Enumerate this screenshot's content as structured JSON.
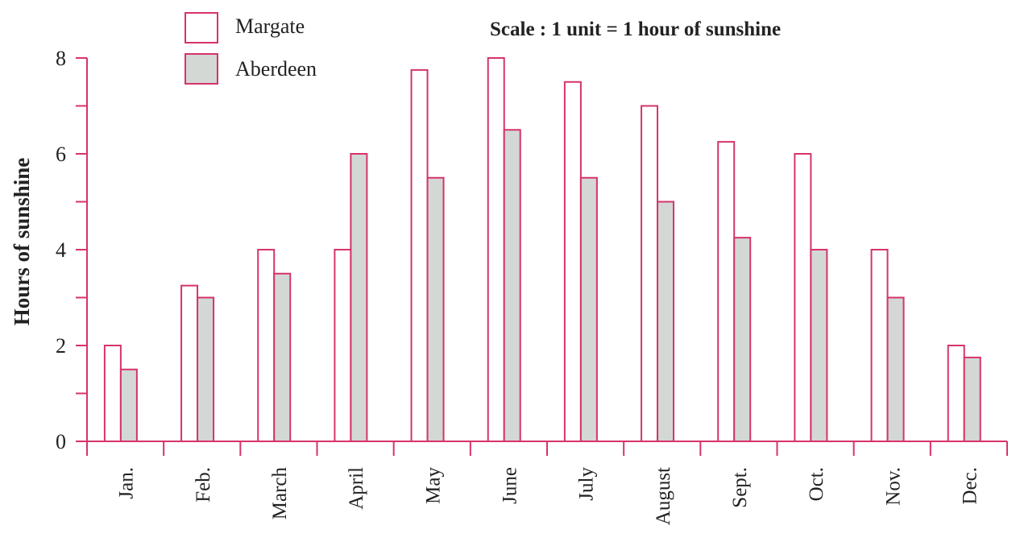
{
  "chart_data": {
    "type": "bar",
    "title": "",
    "annotation": "Scale : 1 unit = 1 hour of sunshine",
    "xlabel": "",
    "ylabel": "Hours of sunshine",
    "ylim": [
      0,
      8
    ],
    "yticks": [
      "0",
      "2",
      "4",
      "6",
      "8"
    ],
    "grid": false,
    "legend_position": "top-left",
    "categories": [
      "Jan.",
      "Feb.",
      "March",
      "April",
      "May",
      "June",
      "July",
      "August",
      "Sept.",
      "Oct.",
      "Nov.",
      "Dec."
    ],
    "series": [
      {
        "name": "Margate",
        "values": [
          2,
          3.25,
          4,
          4,
          7.75,
          8,
          7.5,
          7,
          6.25,
          6,
          4,
          2
        ]
      },
      {
        "name": "Aberdeen",
        "values": [
          1.5,
          3,
          3.5,
          6,
          5.5,
          6.5,
          5.5,
          5,
          4.25,
          4,
          3,
          1.75
        ]
      }
    ]
  },
  "colors": {
    "axis": "#d6336c",
    "bar_outline": "#d6336c",
    "margate_fill": "#ffffff",
    "aberdeen_fill": "#d4d8d4",
    "text": "#222222"
  }
}
